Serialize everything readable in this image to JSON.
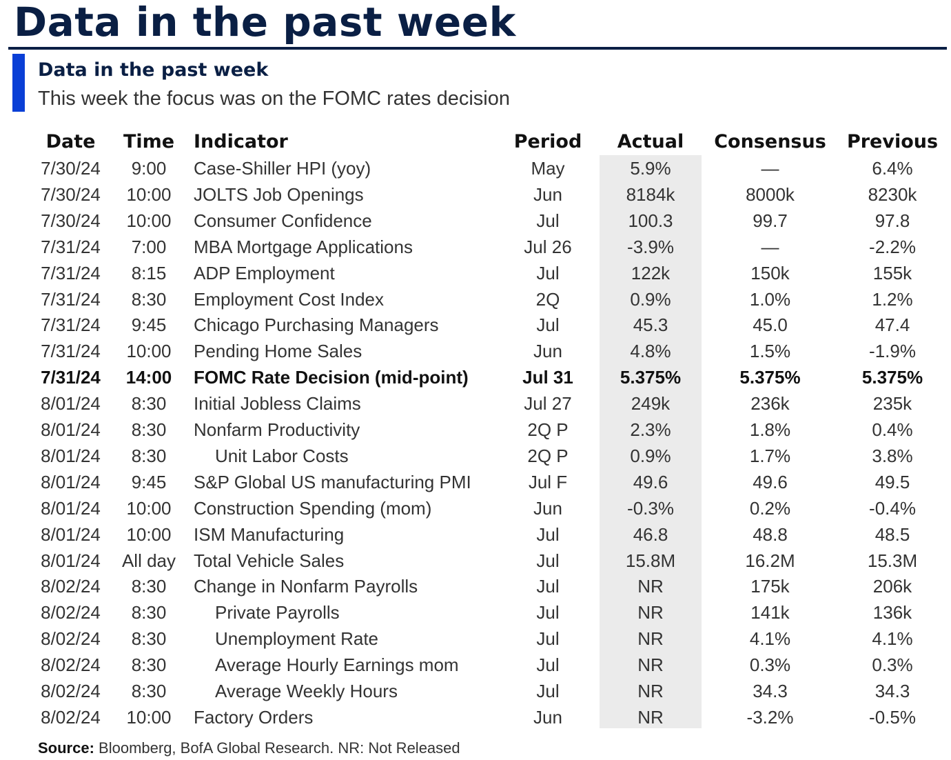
{
  "page": {
    "title": "Data in the past week",
    "subtitle": "Data in the past week",
    "description": "This week the focus was on the FOMC rates decision",
    "source_label": "Source:",
    "source_text": " Bloomberg, BofA Global Research. NR: Not Released"
  },
  "colors": {
    "title": "#0a1f44",
    "accent_bar": "#0a3fd6",
    "actual_column_shade": "#ebebeb"
  },
  "chart_data": {
    "type": "table",
    "title": "Data in the past week",
    "columns": [
      "Date",
      "Time",
      "Indicator",
      "Period",
      "Actual",
      "Consensus",
      "Previous"
    ],
    "rows": [
      {
        "date": "7/30/24",
        "time": "9:00",
        "indicator": "Case-Shiller HPI (yoy)",
        "period": "May",
        "actual": "5.9%",
        "consensus": "—",
        "previous": "6.4%",
        "bold": false,
        "indent": false
      },
      {
        "date": "7/30/24",
        "time": "10:00",
        "indicator": "JOLTS Job Openings",
        "period": "Jun",
        "actual": "8184k",
        "consensus": "8000k",
        "previous": "8230k",
        "bold": false,
        "indent": false
      },
      {
        "date": "7/30/24",
        "time": "10:00",
        "indicator": "Consumer Confidence",
        "period": "Jul",
        "actual": "100.3",
        "consensus": "99.7",
        "previous": "97.8",
        "bold": false,
        "indent": false
      },
      {
        "date": "7/31/24",
        "time": "7:00",
        "indicator": "MBA Mortgage Applications",
        "period": "Jul 26",
        "actual": "-3.9%",
        "consensus": "—",
        "previous": "-2.2%",
        "bold": false,
        "indent": false
      },
      {
        "date": "7/31/24",
        "time": "8:15",
        "indicator": "ADP Employment",
        "period": "Jul",
        "actual": "122k",
        "consensus": "150k",
        "previous": "155k",
        "bold": false,
        "indent": false
      },
      {
        "date": "7/31/24",
        "time": "8:30",
        "indicator": "Employment Cost Index",
        "period": "2Q",
        "actual": "0.9%",
        "consensus": "1.0%",
        "previous": "1.2%",
        "bold": false,
        "indent": false
      },
      {
        "date": "7/31/24",
        "time": "9:45",
        "indicator": "Chicago Purchasing Managers",
        "period": "Jul",
        "actual": "45.3",
        "consensus": "45.0",
        "previous": "47.4",
        "bold": false,
        "indent": false
      },
      {
        "date": "7/31/24",
        "time": "10:00",
        "indicator": "Pending Home Sales",
        "period": "Jun",
        "actual": "4.8%",
        "consensus": "1.5%",
        "previous": "-1.9%",
        "bold": false,
        "indent": false
      },
      {
        "date": "7/31/24",
        "time": "14:00",
        "indicator": "FOMC Rate Decision (mid-point)",
        "period": "Jul 31",
        "actual": "5.375%",
        "consensus": "5.375%",
        "previous": "5.375%",
        "bold": true,
        "indent": false
      },
      {
        "date": "8/01/24",
        "time": "8:30",
        "indicator": "Initial Jobless Claims",
        "period": "Jul 27",
        "actual": "249k",
        "consensus": "236k",
        "previous": "235k",
        "bold": false,
        "indent": false
      },
      {
        "date": "8/01/24",
        "time": "8:30",
        "indicator": "Nonfarm Productivity",
        "period": "2Q P",
        "actual": "2.3%",
        "consensus": "1.8%",
        "previous": "0.4%",
        "bold": false,
        "indent": false
      },
      {
        "date": "8/01/24",
        "time": "8:30",
        "indicator": "Unit Labor Costs",
        "period": "2Q P",
        "actual": "0.9%",
        "consensus": "1.7%",
        "previous": "3.8%",
        "bold": false,
        "indent": true
      },
      {
        "date": "8/01/24",
        "time": "9:45",
        "indicator": "S&P Global US manufacturing PMI",
        "period": "Jul F",
        "actual": "49.6",
        "consensus": "49.6",
        "previous": "49.5",
        "bold": false,
        "indent": false
      },
      {
        "date": "8/01/24",
        "time": "10:00",
        "indicator": "Construction Spending (mom)",
        "period": "Jun",
        "actual": "-0.3%",
        "consensus": "0.2%",
        "previous": "-0.4%",
        "bold": false,
        "indent": false
      },
      {
        "date": "8/01/24",
        "time": "10:00",
        "indicator": "ISM Manufacturing",
        "period": "Jul",
        "actual": "46.8",
        "consensus": "48.8",
        "previous": "48.5",
        "bold": false,
        "indent": false
      },
      {
        "date": "8/01/24",
        "time": "All day",
        "indicator": "Total Vehicle Sales",
        "period": "Jul",
        "actual": "15.8M",
        "consensus": "16.2M",
        "previous": "15.3M",
        "bold": false,
        "indent": false
      },
      {
        "date": "8/02/24",
        "time": "8:30",
        "indicator": "Change in Nonfarm Payrolls",
        "period": "Jul",
        "actual": "NR",
        "consensus": "175k",
        "previous": "206k",
        "bold": false,
        "indent": false
      },
      {
        "date": "8/02/24",
        "time": "8:30",
        "indicator": "Private Payrolls",
        "period": "Jul",
        "actual": "NR",
        "consensus": "141k",
        "previous": "136k",
        "bold": false,
        "indent": true
      },
      {
        "date": "8/02/24",
        "time": "8:30",
        "indicator": "Unemployment Rate",
        "period": "Jul",
        "actual": "NR",
        "consensus": "4.1%",
        "previous": "4.1%",
        "bold": false,
        "indent": true
      },
      {
        "date": "8/02/24",
        "time": "8:30",
        "indicator": "Average Hourly Earnings mom",
        "period": "Jul",
        "actual": "NR",
        "consensus": "0.3%",
        "previous": "0.3%",
        "bold": false,
        "indent": true
      },
      {
        "date": "8/02/24",
        "time": "8:30",
        "indicator": "Average Weekly Hours",
        "period": "Jul",
        "actual": "NR",
        "consensus": "34.3",
        "previous": "34.3",
        "bold": false,
        "indent": true
      },
      {
        "date": "8/02/24",
        "time": "10:00",
        "indicator": "Factory Orders",
        "period": "Jun",
        "actual": "NR",
        "consensus": "-3.2%",
        "previous": "-0.5%",
        "bold": false,
        "indent": false
      }
    ]
  }
}
